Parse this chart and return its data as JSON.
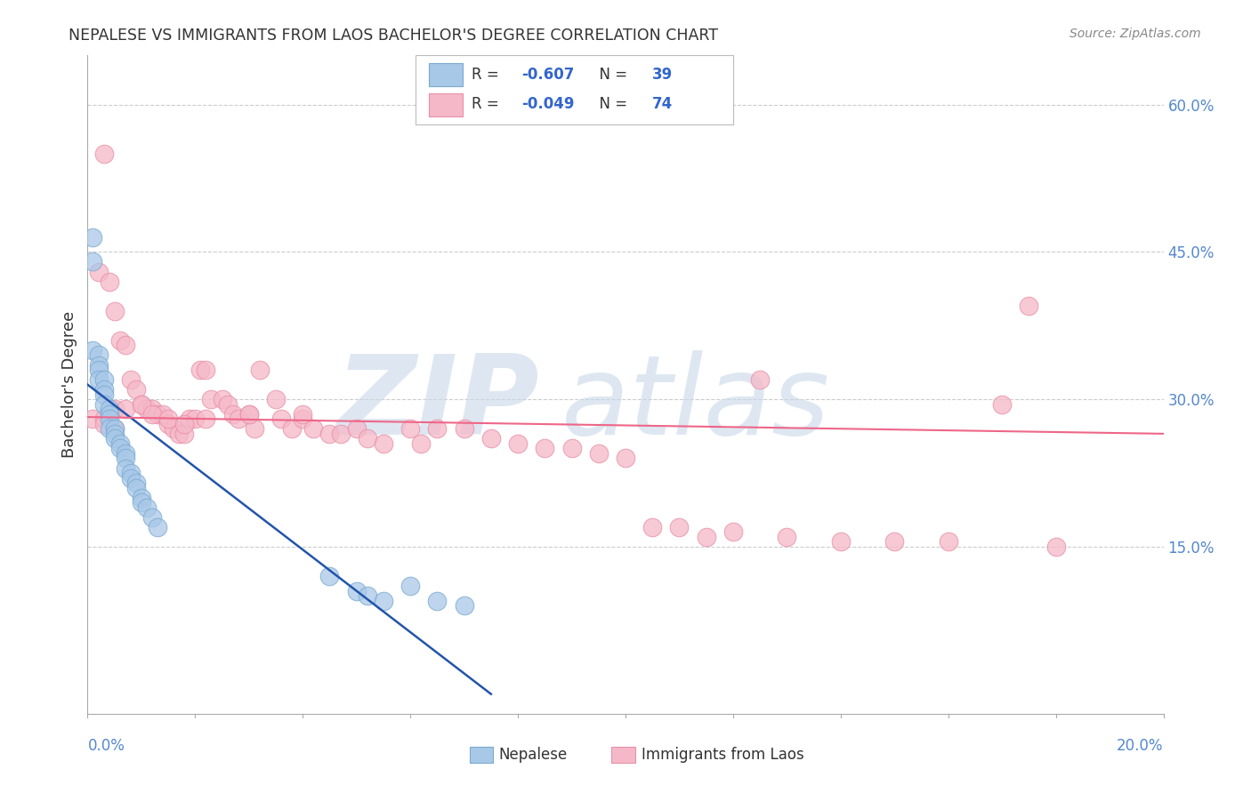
{
  "title": "NEPALESE VS IMMIGRANTS FROM LAOS BACHELOR'S DEGREE CORRELATION CHART",
  "source": "Source: ZipAtlas.com",
  "ylabel": "Bachelor's Degree",
  "right_yticklabels": [
    "15.0%",
    "30.0%",
    "45.0%",
    "60.0%"
  ],
  "right_ytick_vals": [
    0.15,
    0.3,
    0.45,
    0.6
  ],
  "xlim": [
    0.0,
    0.2
  ],
  "ylim": [
    -0.02,
    0.65
  ],
  "nepalese_color": "#a8c8e8",
  "nepalese_edge": "#7aaad0",
  "laos_color": "#f5b8c8",
  "laos_edge": "#e890a8",
  "blue_line_color": "#2255aa",
  "pink_line_color": "#ee6688",
  "gridline_color": "#cccccc",
  "background_color": "#ffffff",
  "legend_label1": "R = -0.607   N = 39",
  "legend_label2": "R = -0.049   N = 74",
  "watermark_zip": "ZIP",
  "watermark_atlas": "atlas",
  "nepalese_x": [
    0.001,
    0.001,
    0.001,
    0.002,
    0.002,
    0.002,
    0.002,
    0.003,
    0.003,
    0.003,
    0.003,
    0.004,
    0.004,
    0.004,
    0.004,
    0.005,
    0.005,
    0.005,
    0.006,
    0.006,
    0.007,
    0.007,
    0.007,
    0.008,
    0.008,
    0.009,
    0.009,
    0.01,
    0.01,
    0.011,
    0.012,
    0.013,
    0.045,
    0.05,
    0.052,
    0.055,
    0.06,
    0.065,
    0.07
  ],
  "nepalese_y": [
    0.465,
    0.44,
    0.35,
    0.345,
    0.335,
    0.33,
    0.32,
    0.32,
    0.31,
    0.305,
    0.295,
    0.29,
    0.285,
    0.28,
    0.27,
    0.27,
    0.265,
    0.26,
    0.255,
    0.25,
    0.245,
    0.24,
    0.23,
    0.225,
    0.22,
    0.215,
    0.21,
    0.2,
    0.195,
    0.19,
    0.18,
    0.17,
    0.12,
    0.105,
    0.1,
    0.095,
    0.11,
    0.095,
    0.09
  ],
  "laos_x": [
    0.001,
    0.002,
    0.003,
    0.003,
    0.004,
    0.005,
    0.005,
    0.006,
    0.007,
    0.008,
    0.009,
    0.01,
    0.011,
    0.012,
    0.013,
    0.014,
    0.015,
    0.016,
    0.017,
    0.018,
    0.019,
    0.02,
    0.021,
    0.022,
    0.023,
    0.025,
    0.026,
    0.027,
    0.028,
    0.03,
    0.031,
    0.032,
    0.035,
    0.036,
    0.038,
    0.04,
    0.042,
    0.045,
    0.047,
    0.05,
    0.052,
    0.055,
    0.06,
    0.062,
    0.065,
    0.07,
    0.075,
    0.08,
    0.085,
    0.09,
    0.095,
    0.1,
    0.105,
    0.11,
    0.115,
    0.12,
    0.125,
    0.13,
    0.14,
    0.15,
    0.16,
    0.17,
    0.175,
    0.18,
    0.003,
    0.005,
    0.007,
    0.01,
    0.012,
    0.015,
    0.018,
    0.022,
    0.03,
    0.04
  ],
  "laos_y": [
    0.28,
    0.43,
    0.28,
    0.55,
    0.42,
    0.39,
    0.27,
    0.36,
    0.355,
    0.32,
    0.31,
    0.295,
    0.29,
    0.29,
    0.285,
    0.285,
    0.275,
    0.27,
    0.265,
    0.265,
    0.28,
    0.28,
    0.33,
    0.33,
    0.3,
    0.3,
    0.295,
    0.285,
    0.28,
    0.285,
    0.27,
    0.33,
    0.3,
    0.28,
    0.27,
    0.28,
    0.27,
    0.265,
    0.265,
    0.27,
    0.26,
    0.255,
    0.27,
    0.255,
    0.27,
    0.27,
    0.26,
    0.255,
    0.25,
    0.25,
    0.245,
    0.24,
    0.17,
    0.17,
    0.16,
    0.165,
    0.32,
    0.16,
    0.155,
    0.155,
    0.155,
    0.295,
    0.395,
    0.15,
    0.275,
    0.29,
    0.29,
    0.295,
    0.285,
    0.28,
    0.275,
    0.28,
    0.285,
    0.285
  ],
  "blue_line_x0": 0.0,
  "blue_line_y0": 0.315,
  "blue_line_x1": 0.075,
  "blue_line_y1": 0.0,
  "pink_line_x0": 0.0,
  "pink_line_y0": 0.282,
  "pink_line_x1": 0.2,
  "pink_line_y1": 0.265
}
